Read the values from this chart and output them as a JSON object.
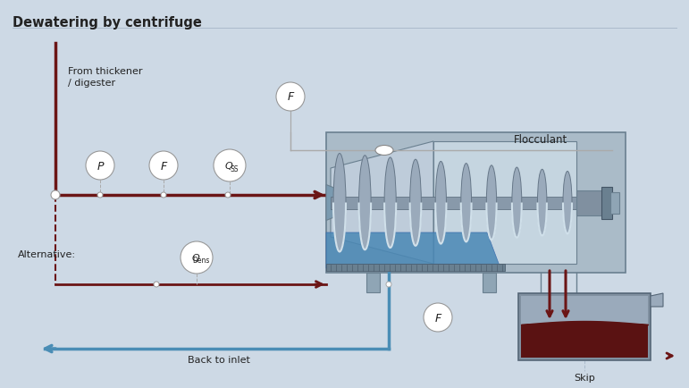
{
  "title": "Dewatering by centrifuge",
  "bg_color": "#cdd9e5",
  "dark_red": "#6b1515",
  "blue": "#4a8db5",
  "gray_light": "#b8c8d5",
  "gray_mid": "#8fa5b5",
  "gray_dark": "#6a8090",
  "white": "#ffffff",
  "labels": {
    "from_thickener": "From thickener\n/ digester",
    "alternative": "Alternative:",
    "flocculant": "Flocculant",
    "back_to_inlet": "Back to inlet",
    "skip": "Skip",
    "P": "P",
    "F": "F",
    "Qss_main": "Q",
    "Qss_sub": "SS",
    "QDens_main": "Q",
    "QDens_sub": "Dens"
  }
}
